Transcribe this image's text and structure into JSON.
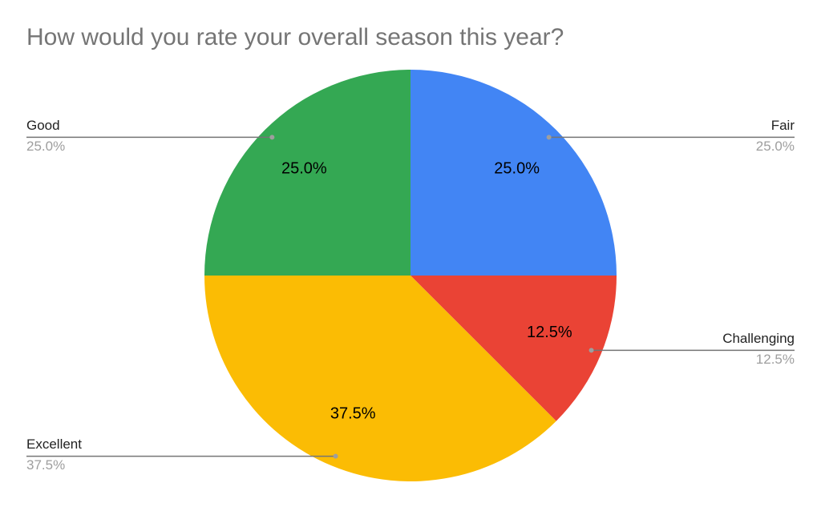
{
  "chart_data": {
    "type": "pie",
    "title": "How would you rate your overall season this year?",
    "categories": [
      "Fair",
      "Challenging",
      "Excellent",
      "Good"
    ],
    "values": [
      25.0,
      12.5,
      37.5,
      25.0
    ],
    "value_labels": [
      "25.0%",
      "12.5%",
      "37.5%",
      "25.0%"
    ],
    "colors": [
      "#4285f4",
      "#ea4335",
      "#fbbc04",
      "#34a853"
    ]
  }
}
